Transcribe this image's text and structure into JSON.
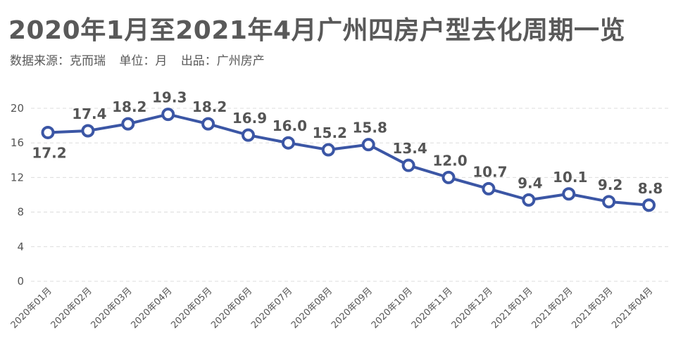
{
  "title": "2020年1月至2021年4月广州四房户型去化周期一览",
  "subtitle": {
    "source": "数据来源：克而瑞",
    "unit": "单位：月",
    "producer": "出品：广州房产"
  },
  "colors": {
    "line": "#3b56a5",
    "point_fill": "#ffffff",
    "grid": "#dcdcdc",
    "text": "#555555"
  },
  "chart_data": {
    "type": "line",
    "title": "2020年1月至2021年4月广州四房户型去化周期一览",
    "categories": [
      "2020年01月",
      "2020年02月",
      "2020年03月",
      "2020年04月",
      "2020年05月",
      "2020年06月",
      "2020年07月",
      "2020年08月",
      "2020年09月",
      "2020年10月",
      "2020年11月",
      "2020年12月",
      "2021年01月",
      "2021年02月",
      "2021年03月",
      "2021年04月"
    ],
    "series": [
      {
        "values": [
          17.2,
          17.4,
          18.2,
          19.3,
          18.2,
          16.9,
          16.0,
          15.2,
          15.8,
          13.4,
          12.0,
          10.7,
          9.4,
          10.1,
          9.2,
          8.8
        ]
      }
    ],
    "yticks": [
      0,
      4,
      8,
      12,
      16,
      20
    ],
    "ylim": [
      0,
      20
    ],
    "grid": true,
    "xlabel": "",
    "ylabel": ""
  }
}
